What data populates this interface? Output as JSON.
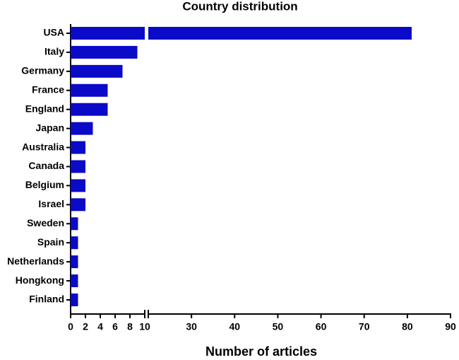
{
  "chart_data": {
    "type": "hbar",
    "title": "Country distribution",
    "x_label": "Number of articles",
    "categories": [
      "USA",
      "Italy",
      "Germany",
      "France",
      "England",
      "Japan",
      "Australia",
      "Canada",
      "Belgium",
      "Israel",
      "Sweden",
      "Spain",
      "Netherlands",
      "Hongkong",
      "Finland"
    ],
    "values": [
      81,
      9,
      7,
      5,
      5,
      3,
      2,
      2,
      2,
      2,
      1,
      1,
      1,
      1,
      1
    ],
    "color": "#0a0ac8",
    "xlim": [
      0,
      90
    ],
    "x_break": [
      10,
      20
    ],
    "xticks": [
      0,
      2,
      4,
      6,
      8,
      10,
      30,
      40,
      50,
      60,
      70,
      80,
      90
    ]
  }
}
